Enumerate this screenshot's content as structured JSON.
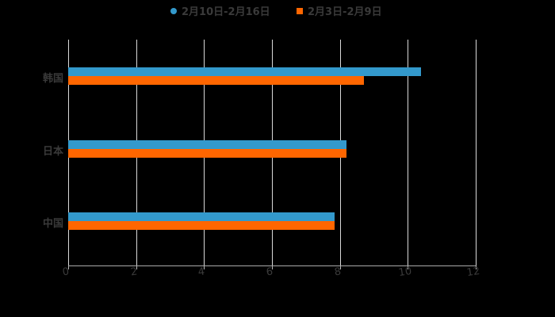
{
  "chart_data": {
    "type": "bar",
    "orientation": "horizontal",
    "title": "",
    "categories": [
      "韩国",
      "日本",
      "中国"
    ],
    "series": [
      {
        "name": "2月10日-2月16日",
        "color": "#3399cc",
        "values": [
          10.4,
          8.2,
          7.85
        ]
      },
      {
        "name": "2月3日-2月9日",
        "color": "#ff6600",
        "values": [
          8.7,
          8.2,
          7.85
        ]
      }
    ],
    "xlabel": "",
    "ylabel": "",
    "xlim": [
      0,
      12
    ],
    "x_ticks": [
      "0",
      "2",
      "4",
      "6",
      "8",
      "10",
      "12"
    ],
    "grid": true,
    "legend_position": "top"
  },
  "legend": [
    {
      "label": "2月10日-2月16日",
      "color": "#3399cc",
      "shape": "circle"
    },
    {
      "label": "2月3日-2月9日",
      "color": "#ff6600",
      "shape": "square"
    }
  ]
}
